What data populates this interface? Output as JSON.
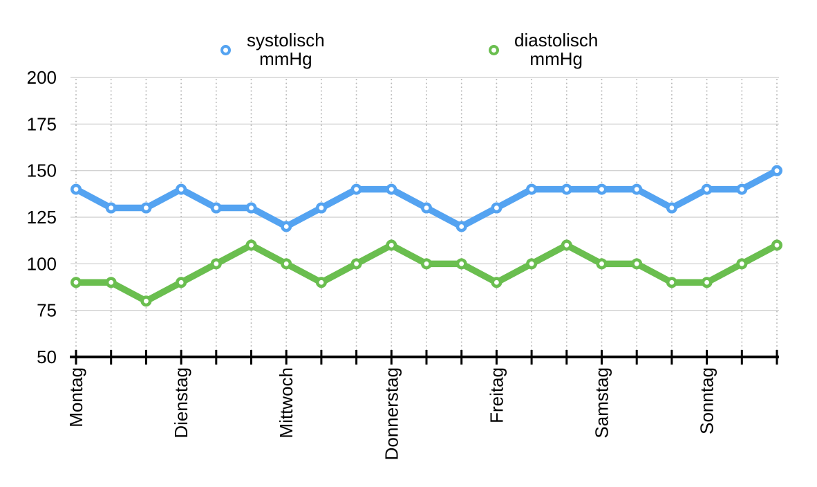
{
  "chart_data": {
    "type": "line",
    "title": "",
    "xlabel": "",
    "ylabel": "",
    "ylim": [
      50,
      200
    ],
    "y_ticks": [
      50,
      75,
      100,
      125,
      150,
      175,
      200
    ],
    "x_point_count": 21,
    "points_per_day": 3,
    "day_labels": [
      {
        "index": 0,
        "label": "Montag"
      },
      {
        "index": 3,
        "label": "Dienstag"
      },
      {
        "index": 6,
        "label": "Mittwoch"
      },
      {
        "index": 9,
        "label": "Donnerstag"
      },
      {
        "index": 12,
        "label": "Freitag"
      },
      {
        "index": 15,
        "label": "Samstag"
      },
      {
        "index": 18,
        "label": "Sonntag"
      }
    ],
    "series": [
      {
        "name": "systolisch mmHg",
        "color": "#54A3F1",
        "values": [
          140,
          130,
          130,
          140,
          130,
          130,
          120,
          130,
          140,
          140,
          130,
          120,
          130,
          140,
          140,
          140,
          140,
          130,
          140,
          140,
          150
        ]
      },
      {
        "name": "diastolisch mmHg",
        "color": "#6ABE4F",
        "values": [
          90,
          90,
          80,
          90,
          100,
          110,
          100,
          90,
          100,
          110,
          100,
          100,
          90,
          100,
          110,
          100,
          100,
          90,
          90,
          100,
          110
        ]
      }
    ],
    "grid": {
      "horizontal": "solid",
      "vertical": "dotted"
    },
    "legend_position": "top",
    "axis_color": "#000000",
    "grid_color_solid": "#cccccc",
    "grid_color_dotted": "#b8b8b8"
  },
  "legend": {
    "items": [
      {
        "line1": "systolisch",
        "line2": "mmHg",
        "color": "#54A3F1"
      },
      {
        "line1": "diastolisch",
        "line2": "mmHg",
        "color": "#6ABE4F"
      }
    ]
  }
}
